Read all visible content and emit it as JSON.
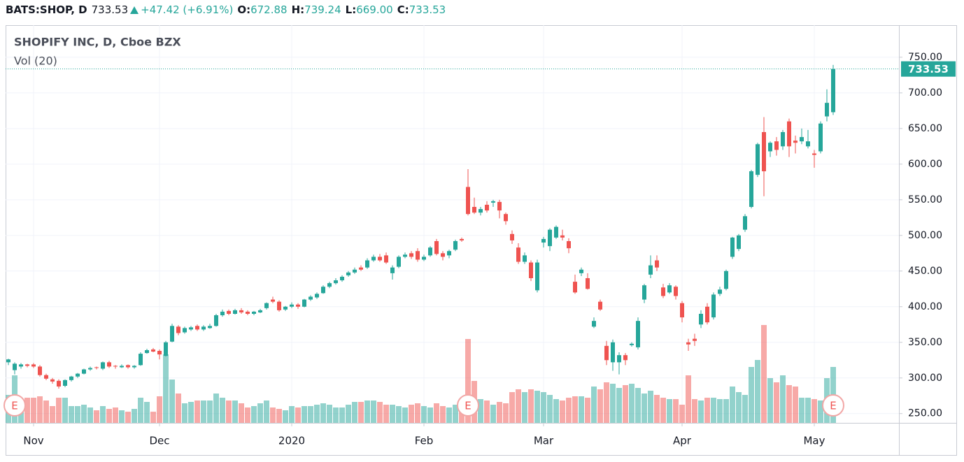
{
  "header": {
    "symbol": "BATS:SHOP, D",
    "last": "733.53",
    "change": "+47.42 (+6.91%)",
    "o_label": "O:",
    "o": "672.88",
    "h_label": "H:",
    "h": "739.24",
    "l_label": "L:",
    "l": "669.00",
    "c_label": "C:",
    "c": "733.53"
  },
  "chart_data": {
    "type": "candlestick",
    "title": "SHOPIFY INC, D, Cboe BZX",
    "volume_label": "Vol (20)",
    "up_color": "#26a69a",
    "down_color": "#ef5350",
    "grid": true,
    "ylim": [
      237,
      795
    ],
    "yticks": [
      {
        "value": 250,
        "label": "250.00"
      },
      {
        "value": 300,
        "label": "300.00"
      },
      {
        "value": 350,
        "label": "350.00"
      },
      {
        "value": 400,
        "label": "400.00"
      },
      {
        "value": 450,
        "label": "450.00"
      },
      {
        "value": 500,
        "label": "500.00"
      },
      {
        "value": 550,
        "label": "550.00"
      },
      {
        "value": 600,
        "label": "600.00"
      },
      {
        "value": 650,
        "label": "650.00"
      },
      {
        "value": 700,
        "label": "700.00"
      },
      {
        "value": 750,
        "label": "750.00"
      }
    ],
    "categories": [
      null,
      null,
      null,
      null,
      "Nov",
      null,
      null,
      null,
      null,
      null,
      null,
      null,
      null,
      null,
      null,
      null,
      null,
      null,
      null,
      null,
      null,
      null,
      null,
      null,
      "Dec",
      null,
      null,
      null,
      null,
      null,
      null,
      null,
      null,
      null,
      null,
      null,
      null,
      null,
      null,
      null,
      null,
      null,
      null,
      null,
      null,
      "2020",
      null,
      null,
      null,
      null,
      null,
      null,
      null,
      null,
      null,
      null,
      null,
      null,
      null,
      null,
      null,
      null,
      null,
      null,
      null,
      null,
      "Feb",
      null,
      null,
      null,
      null,
      null,
      null,
      null,
      null,
      null,
      null,
      null,
      null,
      null,
      null,
      null,
      null,
      null,
      null,
      "Mar",
      null,
      null,
      null,
      null,
      null,
      null,
      null,
      null,
      null,
      null,
      null,
      null,
      null,
      null,
      null,
      null,
      null,
      null,
      null,
      null,
      null,
      "Apr",
      null,
      null,
      null,
      null,
      null,
      null,
      null,
      null,
      null,
      null,
      null,
      null,
      null,
      null,
      null,
      null,
      null,
      null,
      null,
      null,
      "May",
      null,
      null,
      null
    ],
    "open": [
      322,
      311,
      316,
      319,
      319,
      316,
      304,
      298,
      296,
      289,
      297,
      302,
      306,
      312,
      315,
      313,
      322,
      317,
      315,
      318,
      315,
      318,
      335,
      340,
      338,
      331,
      351,
      372,
      364,
      368,
      373,
      368,
      370,
      373,
      388,
      394,
      390,
      395,
      393,
      390,
      392,
      398,
      410,
      407,
      396,
      400,
      403,
      400,
      410,
      413,
      419,
      428,
      433,
      437,
      444,
      448,
      455,
      455,
      465,
      470,
      472,
      447,
      456,
      470,
      475,
      478,
      466,
      472,
      492,
      475,
      472,
      480,
      495,
      568,
      540,
      532,
      543,
      546,
      547,
      530,
      502,
      483,
      463,
      462,
      423,
      490,
      485,
      497,
      500,
      492,
      435,
      447,
      440,
      372,
      407,
      345,
      322,
      322,
      332,
      346,
      343,
      410,
      445,
      465,
      427,
      420,
      428,
      405,
      350,
      355,
      375,
      400,
      385,
      418,
      425,
      470,
      481,
      508,
      540,
      585,
      645,
      618,
      632,
      625,
      660,
      633,
      632,
      625,
      615,
      618,
      667,
      672.88
    ],
    "high": [
      327,
      322,
      321,
      320,
      321,
      318,
      306,
      300,
      298,
      298,
      303,
      307,
      313,
      316,
      316,
      323,
      324,
      318,
      319,
      319,
      318,
      336,
      341,
      342,
      340,
      352,
      376,
      374,
      372,
      373,
      375,
      374,
      376,
      390,
      396,
      396,
      397,
      398,
      395,
      394,
      397,
      406,
      414,
      409,
      401,
      406,
      405,
      411,
      416,
      420,
      430,
      435,
      440,
      444,
      450,
      455,
      458,
      468,
      473,
      474,
      476,
      458,
      472,
      476,
      478,
      482,
      473,
      485,
      495,
      478,
      480,
      494,
      497,
      593,
      553,
      540,
      548,
      550,
      550,
      532,
      507,
      489,
      476,
      465,
      466,
      498,
      510,
      514,
      508,
      496,
      445,
      455,
      447,
      385,
      410,
      352,
      354,
      336,
      335,
      350,
      385,
      432,
      472,
      472,
      432,
      433,
      430,
      408,
      355,
      362,
      395,
      405,
      420,
      428,
      452,
      498,
      502,
      530,
      592,
      630,
      666,
      632,
      638,
      648,
      664,
      640,
      650,
      648,
      620,
      660,
      705,
      739.24
    ],
    "low": [
      318,
      305,
      313,
      315,
      314,
      302,
      297,
      292,
      285,
      287,
      295,
      300,
      305,
      310,
      312,
      311,
      314,
      313,
      314,
      313,
      313,
      317,
      334,
      336,
      326,
      330,
      350,
      360,
      362,
      366,
      366,
      366,
      369,
      372,
      386,
      388,
      389,
      390,
      388,
      388,
      391,
      396,
      405,
      393,
      394,
      398,
      397,
      399,
      408,
      411,
      418,
      426,
      431,
      435,
      442,
      446,
      450,
      453,
      463,
      463,
      460,
      438,
      454,
      468,
      467,
      463,
      464,
      470,
      472,
      465,
      468,
      478,
      491,
      528,
      530,
      528,
      532,
      540,
      524,
      515,
      488,
      460,
      460,
      436,
      420,
      483,
      478,
      495,
      493,
      475,
      418,
      443,
      424,
      370,
      394,
      318,
      310,
      305,
      318,
      344,
      340,
      405,
      440,
      450,
      412,
      418,
      410,
      378,
      338,
      345,
      370,
      375,
      382,
      415,
      423,
      467,
      478,
      505,
      538,
      582,
      555,
      610,
      612,
      620,
      610,
      615,
      628,
      622,
      595,
      615,
      660,
      669.0
    ],
    "close": [
      326,
      320,
      319,
      317,
      316,
      304,
      299,
      295,
      288,
      297,
      302,
      306,
      312,
      314,
      314,
      322,
      316,
      316,
      317,
      315,
      317,
      334,
      339,
      337,
      333,
      350,
      373,
      363,
      370,
      371,
      368,
      372,
      373,
      388,
      393,
      390,
      395,
      392,
      390,
      393,
      395,
      405,
      407,
      395,
      400,
      403,
      400,
      410,
      414,
      418,
      428,
      433,
      437,
      442,
      448,
      452,
      452,
      465,
      470,
      465,
      462,
      455,
      470,
      473,
      470,
      466,
      470,
      483,
      474,
      470,
      478,
      492,
      493,
      530,
      532,
      537,
      535,
      548,
      535,
      520,
      493,
      463,
      472,
      440,
      462,
      495,
      508,
      512,
      497,
      482,
      420,
      452,
      425,
      380,
      396,
      325,
      350,
      332,
      325,
      348,
      380,
      430,
      458,
      455,
      415,
      430,
      415,
      385,
      347,
      352,
      390,
      378,
      417,
      424,
      450,
      497,
      500,
      527,
      590,
      628,
      590,
      630,
      620,
      645,
      625,
      630,
      638,
      632,
      613,
      657,
      686,
      733.53
    ],
    "volume": [
      2.0,
      3.4,
      1.6,
      1.8,
      1.8,
      1.9,
      1.6,
      1.2,
      1.8,
      1.8,
      1.2,
      1.2,
      1.3,
      1.1,
      0.9,
      1.2,
      1.0,
      1.1,
      0.9,
      0.8,
      1.0,
      1.8,
      1.5,
      0.8,
      1.9,
      4.9,
      3.1,
      2.1,
      1.4,
      1.5,
      1.6,
      1.6,
      1.6,
      2.1,
      1.8,
      1.6,
      1.6,
      1.4,
      1.1,
      1.2,
      1.4,
      1.6,
      1.1,
      1.0,
      0.9,
      1.2,
      1.1,
      1.2,
      1.2,
      1.3,
      1.4,
      1.3,
      1.1,
      1.1,
      1.3,
      1.5,
      1.5,
      1.6,
      1.6,
      1.5,
      1.3,
      1.3,
      1.2,
      1.1,
      1.3,
      1.4,
      1.2,
      1.1,
      1.4,
      1.2,
      1.1,
      1.3,
      1.1,
      6.0,
      3.0,
      1.7,
      1.6,
      1.3,
      1.5,
      1.4,
      2.2,
      2.4,
      2.2,
      2.4,
      2.3,
      2.2,
      2.0,
      1.7,
      1.6,
      1.8,
      1.9,
      1.9,
      1.8,
      2.6,
      2.4,
      2.9,
      2.8,
      2.5,
      2.7,
      2.8,
      2.5,
      2.1,
      2.3,
      2.0,
      1.8,
      1.7,
      1.7,
      1.3,
      3.4,
      1.7,
      1.6,
      1.8,
      1.8,
      1.7,
      1.7,
      2.6,
      2.2,
      2.0,
      4.0,
      4.5,
      7.0,
      3.2,
      2.9,
      3.4,
      2.7,
      2.6,
      1.8,
      1.8,
      1.7,
      1.6,
      3.2,
      4.0
    ],
    "earnings": [
      {
        "index": 1,
        "label": "E"
      },
      {
        "index": 73,
        "label": "E"
      },
      {
        "index": 131,
        "label": "E"
      }
    ]
  }
}
